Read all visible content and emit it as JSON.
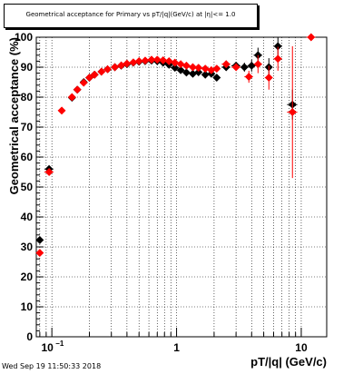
{
  "chart_data": {
    "type": "scatter",
    "title": "Geometrical acceptance for Primary vs pT/|q|(GeV/c) at |η|<= 1.0",
    "xlabel": "pT/|q| (GeV/c)",
    "ylabel": "Geometrical acceptance (%)",
    "xscale": "log",
    "xlim": [
      0.075,
      16
    ],
    "ylim": [
      0,
      100
    ],
    "grid": true,
    "x_tick_labels": [
      {
        "value": 0.1,
        "label": "10",
        "exp": "−1"
      },
      {
        "value": 1,
        "label": "1",
        "exp": ""
      },
      {
        "value": 10,
        "label": "10",
        "exp": ""
      }
    ],
    "y_ticks": [
      0,
      10,
      20,
      30,
      40,
      50,
      60,
      70,
      80,
      90,
      100
    ],
    "series": [
      {
        "color": "#000000",
        "marker": "diamond",
        "points": [
          {
            "x": 0.08,
            "y": 32.3,
            "xerr": 0.005,
            "yerr": 0
          },
          {
            "x": 0.095,
            "y": 56.0,
            "xerr": 0.008,
            "yerr": 0
          },
          {
            "x": 0.145,
            "y": 79.8,
            "xerr": 0,
            "yerr": 0
          },
          {
            "x": 0.16,
            "y": 82.5,
            "xerr": 0,
            "yerr": 0
          },
          {
            "x": 0.18,
            "y": 85.0,
            "xerr": 0,
            "yerr": 0
          },
          {
            "x": 0.2,
            "y": 86.5,
            "xerr": 0,
            "yerr": 0
          },
          {
            "x": 0.22,
            "y": 87.5,
            "xerr": 0,
            "yerr": 0
          },
          {
            "x": 0.25,
            "y": 88.5,
            "xerr": 0,
            "yerr": 0
          },
          {
            "x": 0.28,
            "y": 89.3,
            "xerr": 0,
            "yerr": 0
          },
          {
            "x": 0.32,
            "y": 90.0,
            "xerr": 0,
            "yerr": 0
          },
          {
            "x": 0.36,
            "y": 90.5,
            "xerr": 0,
            "yerr": 0
          },
          {
            "x": 0.4,
            "y": 91.0,
            "xerr": 0,
            "yerr": 0
          },
          {
            "x": 0.45,
            "y": 91.5,
            "xerr": 0,
            "yerr": 0
          },
          {
            "x": 0.5,
            "y": 91.8,
            "xerr": 0,
            "yerr": 0
          },
          {
            "x": 0.56,
            "y": 92.0,
            "xerr": 0,
            "yerr": 0
          },
          {
            "x": 0.63,
            "y": 92.2,
            "xerr": 0,
            "yerr": 0
          },
          {
            "x": 0.7,
            "y": 92.0,
            "xerr": 0,
            "yerr": 0
          },
          {
            "x": 0.78,
            "y": 91.5,
            "xerr": 0,
            "yerr": 0
          },
          {
            "x": 0.87,
            "y": 90.8,
            "xerr": 0,
            "yerr": 0
          },
          {
            "x": 0.97,
            "y": 89.8,
            "xerr": 0,
            "yerr": 0
          },
          {
            "x": 1.08,
            "y": 89.0,
            "xerr": 0,
            "yerr": 0
          },
          {
            "x": 1.2,
            "y": 88.2,
            "xerr": 0,
            "yerr": 0
          },
          {
            "x": 1.35,
            "y": 87.8,
            "xerr": 0,
            "yerr": 0
          },
          {
            "x": 1.5,
            "y": 88.3,
            "xerr": 0,
            "yerr": 0
          },
          {
            "x": 1.7,
            "y": 87.5,
            "xerr": 0,
            "yerr": 0
          },
          {
            "x": 1.9,
            "y": 87.8,
            "xerr": 0,
            "yerr": 0
          },
          {
            "x": 2.1,
            "y": 86.5,
            "xerr": 0,
            "yerr": 0
          },
          {
            "x": 2.5,
            "y": 90.0,
            "xerr": 0.2,
            "yerr": 1.2
          },
          {
            "x": 3.0,
            "y": 90.5,
            "xerr": 0.25,
            "yerr": 1.2
          },
          {
            "x": 3.5,
            "y": 90.0,
            "xerr": 0.3,
            "yerr": 1.5
          },
          {
            "x": 4.0,
            "y": 90.5,
            "xerr": 0.3,
            "yerr": 2
          },
          {
            "x": 4.5,
            "y": 94.0,
            "xerr": 0.35,
            "yerr": 2.5
          },
          {
            "x": 5.5,
            "y": 90.0,
            "xerr": 0.4,
            "yerr": 3
          },
          {
            "x": 6.5,
            "y": 97.0,
            "xerr": 0.5,
            "yerr": 3
          },
          {
            "x": 8.5,
            "y": 77.5,
            "xerr": 0.8,
            "yerr": 5
          }
        ]
      },
      {
        "color": "#ff0000",
        "marker": "diamond",
        "points": [
          {
            "x": 0.08,
            "y": 28.0,
            "xerr": 0.005,
            "yerr": 0
          },
          {
            "x": 0.095,
            "y": 55.0,
            "xerr": 0.008,
            "yerr": 0
          },
          {
            "x": 0.12,
            "y": 75.5,
            "xerr": 0.008,
            "yerr": 0
          },
          {
            "x": 0.145,
            "y": 80.0,
            "xerr": 0,
            "yerr": 0
          },
          {
            "x": 0.16,
            "y": 82.5,
            "xerr": 0,
            "yerr": 0
          },
          {
            "x": 0.18,
            "y": 84.8,
            "xerr": 0,
            "yerr": 0
          },
          {
            "x": 0.2,
            "y": 86.5,
            "xerr": 0,
            "yerr": 0
          },
          {
            "x": 0.22,
            "y": 87.5,
            "xerr": 0,
            "yerr": 0
          },
          {
            "x": 0.25,
            "y": 88.5,
            "xerr": 0,
            "yerr": 0
          },
          {
            "x": 0.28,
            "y": 89.3,
            "xerr": 0,
            "yerr": 0
          },
          {
            "x": 0.32,
            "y": 90.0,
            "xerr": 0,
            "yerr": 0
          },
          {
            "x": 0.36,
            "y": 90.6,
            "xerr": 0,
            "yerr": 0
          },
          {
            "x": 0.4,
            "y": 91.2,
            "xerr": 0,
            "yerr": 0
          },
          {
            "x": 0.45,
            "y": 91.6,
            "xerr": 0,
            "yerr": 0
          },
          {
            "x": 0.5,
            "y": 92.0,
            "xerr": 0,
            "yerr": 0
          },
          {
            "x": 0.56,
            "y": 92.2,
            "xerr": 0,
            "yerr": 0
          },
          {
            "x": 0.63,
            "y": 92.5,
            "xerr": 0,
            "yerr": 0
          },
          {
            "x": 0.7,
            "y": 92.5,
            "xerr": 0,
            "yerr": 0
          },
          {
            "x": 0.78,
            "y": 92.3,
            "xerr": 0,
            "yerr": 0
          },
          {
            "x": 0.87,
            "y": 92.0,
            "xerr": 0,
            "yerr": 0
          },
          {
            "x": 0.97,
            "y": 91.5,
            "xerr": 0,
            "yerr": 0
          },
          {
            "x": 1.08,
            "y": 91.0,
            "xerr": 0,
            "yerr": 0
          },
          {
            "x": 1.2,
            "y": 90.5,
            "xerr": 0,
            "yerr": 0
          },
          {
            "x": 1.35,
            "y": 90.0,
            "xerr": 0,
            "yerr": 0
          },
          {
            "x": 1.5,
            "y": 89.8,
            "xerr": 0,
            "yerr": 0
          },
          {
            "x": 1.7,
            "y": 89.5,
            "xerr": 0,
            "yerr": 0
          },
          {
            "x": 1.9,
            "y": 89.0,
            "xerr": 0,
            "yerr": 0
          },
          {
            "x": 2.1,
            "y": 89.5,
            "xerr": 0,
            "yerr": 0
          },
          {
            "x": 2.5,
            "y": 91.0,
            "xerr": 0.2,
            "yerr": 1.2
          },
          {
            "x": 3.0,
            "y": 90.0,
            "xerr": 0.25,
            "yerr": 1.2
          },
          {
            "x": 3.8,
            "y": 86.8,
            "xerr": 0.3,
            "yerr": 2
          },
          {
            "x": 4.5,
            "y": 91.0,
            "xerr": 0.35,
            "yerr": 3
          },
          {
            "x": 5.5,
            "y": 86.5,
            "xerr": 0.4,
            "yerr": 4
          },
          {
            "x": 6.5,
            "y": 92.8,
            "xerr": 0.5,
            "yerr": 4
          },
          {
            "x": 8.5,
            "y": 75.0,
            "xerr": 0.8,
            "yerr": 22
          },
          {
            "x": 12.0,
            "y": 100.0,
            "xerr": 1.0,
            "yerr": 0
          }
        ]
      }
    ]
  },
  "footer": {
    "timestamp": "Wed Sep 19 11:50:33 2018"
  }
}
